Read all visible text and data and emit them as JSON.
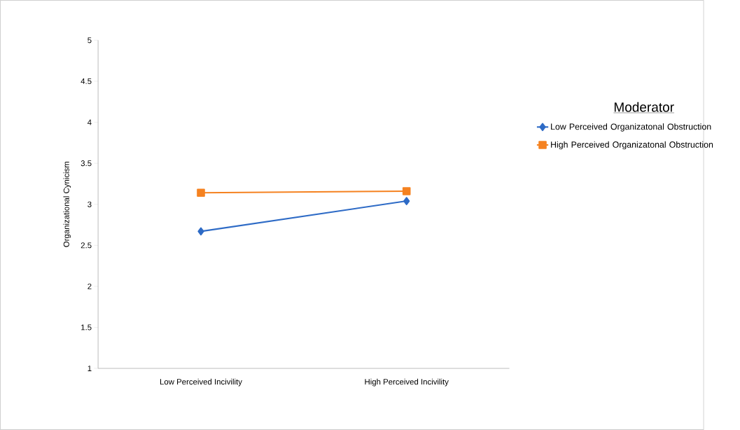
{
  "chart_data": {
    "type": "line",
    "ylabel": "Organizational Cynicism",
    "legend_title": "Moderator",
    "legend": "right",
    "categories": [
      "Low Perceived Incivility",
      "High Perceived Incivility"
    ],
    "series": [
      {
        "name": "Low Perceived Organizatonal Obstruction",
        "color": "#2e6bc6",
        "values": [
          2.67,
          3.04
        ],
        "marker": "diamond"
      },
      {
        "name": "High Perceived Organizatonal Obstruction",
        "color": "#f58220",
        "values": [
          3.14,
          3.16
        ],
        "marker": "square"
      }
    ],
    "ylim": [
      1,
      5
    ],
    "yticks": [
      1,
      1.5,
      2,
      2.5,
      3,
      3.5,
      4,
      4.5,
      5
    ],
    "grid": false,
    "line_style": "solid"
  }
}
